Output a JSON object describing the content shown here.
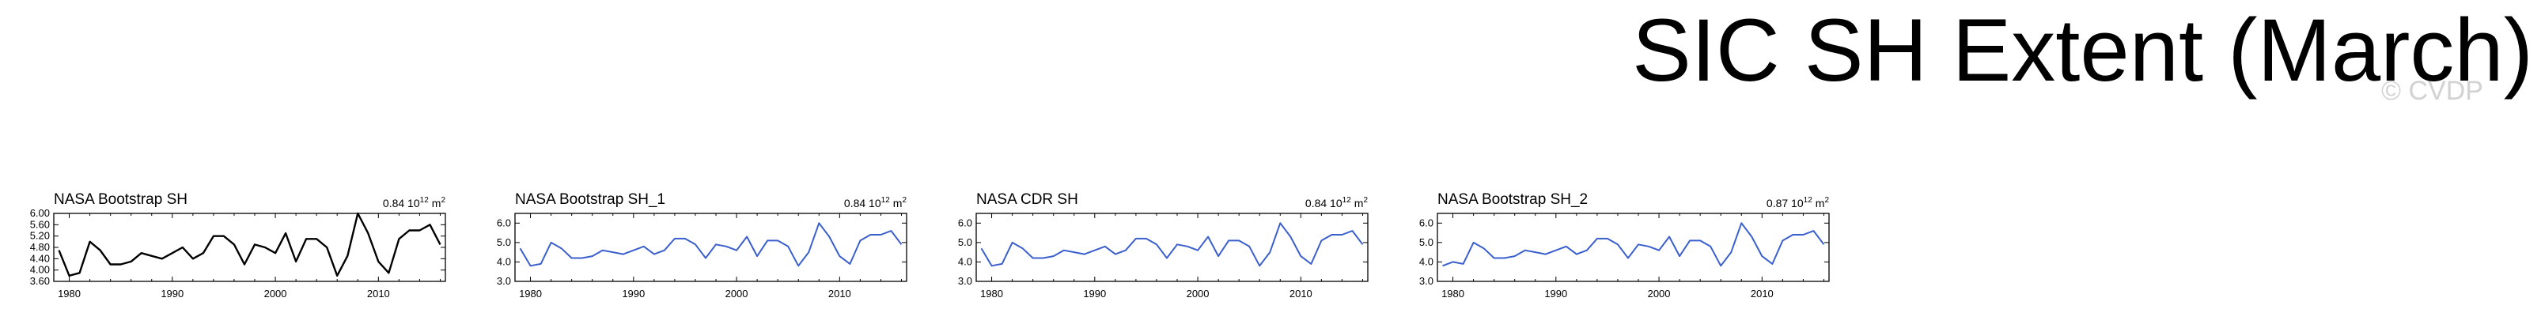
{
  "page_title": "SIC SH Extent (March)",
  "watermark": "© CVDP",
  "chart_data": [
    {
      "type": "line",
      "title": "NASA Bootstrap SH",
      "value_label": "0.84 10",
      "value_exp": "12",
      "value_unit": "m",
      "value_unit_exp": "2",
      "color": "#000000",
      "ylim": [
        3.6,
        6.0
      ],
      "yticks": [
        "6.00",
        "5.60",
        "5.20",
        "4.80",
        "4.40",
        "4.00",
        "3.60"
      ],
      "xlim": [
        1978.5,
        2016.5
      ],
      "xticks": [
        "1980",
        "1990",
        "2000",
        "2010"
      ],
      "x": [
        1979,
        1980,
        1981,
        1982,
        1983,
        1984,
        1985,
        1986,
        1987,
        1988,
        1989,
        1990,
        1991,
        1992,
        1993,
        1994,
        1995,
        1996,
        1997,
        1998,
        1999,
        2000,
        2001,
        2002,
        2003,
        2004,
        2005,
        2006,
        2007,
        2008,
        2009,
        2010,
        2011,
        2012,
        2013,
        2014,
        2015,
        2016
      ],
      "y": [
        4.7,
        3.8,
        3.9,
        5.0,
        4.7,
        4.2,
        4.2,
        4.3,
        4.6,
        4.5,
        4.4,
        4.6,
        4.8,
        4.4,
        4.6,
        5.2,
        5.2,
        4.9,
        4.2,
        4.9,
        4.8,
        4.6,
        5.3,
        4.3,
        5.1,
        5.1,
        4.8,
        3.8,
        4.5,
        6.0,
        5.3,
        4.3,
        3.9,
        5.1,
        5.4,
        5.4,
        5.6,
        4.9
      ]
    },
    {
      "type": "line",
      "title": "NASA Bootstrap SH_1",
      "value_label": "0.84 10",
      "value_exp": "12",
      "value_unit": "m",
      "value_unit_exp": "2",
      "color": "#3a5fcd",
      "ylim": [
        3.0,
        6.5
      ],
      "yticks": [
        "6.0",
        "5.0",
        "4.0",
        "3.0"
      ],
      "xlim": [
        1978.5,
        2016.5
      ],
      "xticks": [
        "1980",
        "1990",
        "2000",
        "2010"
      ],
      "x": [
        1979,
        1980,
        1981,
        1982,
        1983,
        1984,
        1985,
        1986,
        1987,
        1988,
        1989,
        1990,
        1991,
        1992,
        1993,
        1994,
        1995,
        1996,
        1997,
        1998,
        1999,
        2000,
        2001,
        2002,
        2003,
        2004,
        2005,
        2006,
        2007,
        2008,
        2009,
        2010,
        2011,
        2012,
        2013,
        2014,
        2015,
        2016
      ],
      "y": [
        4.7,
        3.8,
        3.9,
        5.0,
        4.7,
        4.2,
        4.2,
        4.3,
        4.6,
        4.5,
        4.4,
        4.6,
        4.8,
        4.4,
        4.6,
        5.2,
        5.2,
        4.9,
        4.2,
        4.9,
        4.8,
        4.6,
        5.3,
        4.3,
        5.1,
        5.1,
        4.8,
        3.8,
        4.5,
        6.0,
        5.3,
        4.3,
        3.9,
        5.1,
        5.4,
        5.4,
        5.6,
        4.9
      ]
    },
    {
      "type": "line",
      "title": "NASA CDR SH",
      "value_label": "0.84 10",
      "value_exp": "12",
      "value_unit": "m",
      "value_unit_exp": "2",
      "color": "#3a5fcd",
      "ylim": [
        3.0,
        6.5
      ],
      "yticks": [
        "6.0",
        "5.0",
        "4.0",
        "3.0"
      ],
      "xlim": [
        1978.5,
        2016.5
      ],
      "xticks": [
        "1980",
        "1990",
        "2000",
        "2010"
      ],
      "x": [
        1979,
        1980,
        1981,
        1982,
        1983,
        1984,
        1985,
        1986,
        1987,
        1988,
        1989,
        1990,
        1991,
        1992,
        1993,
        1994,
        1995,
        1996,
        1997,
        1998,
        1999,
        2000,
        2001,
        2002,
        2003,
        2004,
        2005,
        2006,
        2007,
        2008,
        2009,
        2010,
        2011,
        2012,
        2013,
        2014,
        2015,
        2016
      ],
      "y": [
        4.7,
        3.8,
        3.9,
        5.0,
        4.7,
        4.2,
        4.2,
        4.3,
        4.6,
        4.5,
        4.4,
        4.6,
        4.8,
        4.4,
        4.6,
        5.2,
        5.2,
        4.9,
        4.2,
        4.9,
        4.8,
        4.6,
        5.3,
        4.3,
        5.1,
        5.1,
        4.8,
        3.8,
        4.5,
        6.0,
        5.3,
        4.3,
        3.9,
        5.1,
        5.4,
        5.4,
        5.6,
        4.9
      ]
    },
    {
      "type": "line",
      "title": "NASA Bootstrap SH_2",
      "value_label": "0.87 10",
      "value_exp": "12",
      "value_unit": "m",
      "value_unit_exp": "2",
      "color": "#3a5fcd",
      "ylim": [
        3.0,
        6.5
      ],
      "yticks": [
        "6.0",
        "5.0",
        "4.0",
        "3.0"
      ],
      "xlim": [
        1978.5,
        2016.5
      ],
      "xticks": [
        "1980",
        "1990",
        "2000",
        "2010"
      ],
      "x": [
        1979,
        1980,
        1981,
        1982,
        1983,
        1984,
        1985,
        1986,
        1987,
        1988,
        1989,
        1990,
        1991,
        1992,
        1993,
        1994,
        1995,
        1996,
        1997,
        1998,
        1999,
        2000,
        2001,
        2002,
        2003,
        2004,
        2005,
        2006,
        2007,
        2008,
        2009,
        2010,
        2011,
        2012,
        2013,
        2014,
        2015,
        2016
      ],
      "y": [
        3.8,
        4.0,
        3.9,
        5.0,
        4.7,
        4.2,
        4.2,
        4.3,
        4.6,
        4.5,
        4.4,
        4.6,
        4.8,
        4.4,
        4.6,
        5.2,
        5.2,
        4.9,
        4.2,
        4.9,
        4.8,
        4.6,
        5.3,
        4.3,
        5.1,
        5.1,
        4.8,
        3.8,
        4.5,
        6.0,
        5.3,
        4.3,
        3.9,
        5.1,
        5.4,
        5.4,
        5.6,
        4.9
      ]
    }
  ]
}
